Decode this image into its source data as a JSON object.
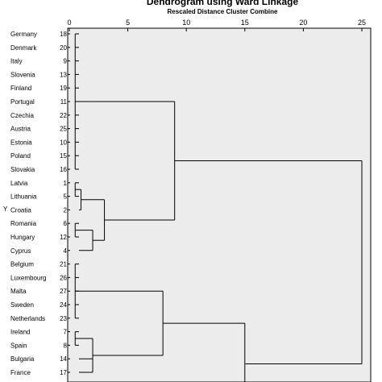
{
  "chart_data": {
    "type": "dendrogram",
    "title": "Dendrogram using Ward Linkage",
    "subtitle": "Rescaled Distance Cluster Combine",
    "ylabel": "Y",
    "x_ticks": [
      0,
      5,
      10,
      15,
      20,
      25
    ],
    "xlim": [
      0,
      25
    ],
    "background_color": "#ececec",
    "line_color": "#000000",
    "leaves": [
      {
        "name": "Germany",
        "id": "18"
      },
      {
        "name": "Denmark",
        "id": "20"
      },
      {
        "name": "Italy",
        "id": "9"
      },
      {
        "name": "Slovenia",
        "id": "13"
      },
      {
        "name": "Finland",
        "id": "19"
      },
      {
        "name": "Portugal",
        "id": "11"
      },
      {
        "name": "Czechia",
        "id": "22"
      },
      {
        "name": "Austria",
        "id": "25"
      },
      {
        "name": "Estonia",
        "id": "10"
      },
      {
        "name": "Poland",
        "id": "15"
      },
      {
        "name": "Slovakia",
        "id": "16"
      },
      {
        "name": "Latvia",
        "id": "1"
      },
      {
        "name": "Lithuania",
        "id": "5"
      },
      {
        "name": "Croatia",
        "id": "2"
      },
      {
        "name": "Romania",
        "id": "6"
      },
      {
        "name": "Hungary",
        "id": "12"
      },
      {
        "name": "Cyprus",
        "id": "4"
      },
      {
        "name": "Belgium",
        "id": "21"
      },
      {
        "name": "Luxembourg",
        "id": "26"
      },
      {
        "name": "Malta",
        "id": "27"
      },
      {
        "name": "Sweden",
        "id": "24"
      },
      {
        "name": "Netherlands",
        "id": "23"
      },
      {
        "name": "Ireland",
        "id": "7"
      },
      {
        "name": "Spain",
        "id": "8"
      },
      {
        "name": "Bulgaria",
        "id": "14"
      },
      {
        "name": "France",
        "id": "17"
      }
    ],
    "merges": [
      {
        "id": "a",
        "children": [
          0,
          1,
          2,
          3,
          4,
          5,
          6,
          7,
          8,
          9,
          10
        ],
        "height": 0.5
      },
      {
        "id": "b",
        "children": [
          "a"
        ],
        "height": 2.0
      },
      {
        "id": "c",
        "children": [
          11,
          12
        ],
        "height": 0.5
      },
      {
        "id": "c2",
        "children": [
          "c",
          13
        ],
        "height": 1.0
      },
      {
        "id": "d",
        "children": [
          14,
          15
        ],
        "height": 0.5
      },
      {
        "id": "e",
        "children": [
          "d",
          16
        ],
        "height": 2.0
      },
      {
        "id": "f",
        "children": [
          "c2",
          "e"
        ],
        "height": 3.0
      },
      {
        "id": "g",
        "children": [
          "b",
          "f"
        ],
        "height": 9.0
      },
      {
        "id": "h",
        "children": [
          17,
          18,
          19,
          20,
          21
        ],
        "height": 0.5
      },
      {
        "id": "i",
        "children": [
          22,
          23
        ],
        "height": 0.5
      },
      {
        "id": "j",
        "children": [
          "i",
          24,
          25
        ],
        "height": 2.0
      },
      {
        "id": "k",
        "children": [
          "h",
          "j"
        ],
        "height": 8.0
      },
      {
        "id": "l",
        "children": [
          "k",
          "tail"
        ],
        "height": 15.0
      },
      {
        "id": "root",
        "children": [
          "g",
          "l"
        ],
        "height": 25.0
      }
    ]
  }
}
